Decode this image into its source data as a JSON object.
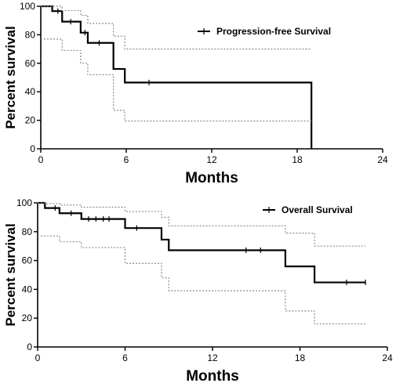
{
  "chart_data": [
    {
      "type": "line",
      "subtype": "kaplan-meier",
      "title": "",
      "xlabel": "Months",
      "ylabel": "Percent survival",
      "xlim": [
        0,
        24
      ],
      "ylim": [
        0,
        100
      ],
      "xticks": [
        0,
        6,
        12,
        18,
        24
      ],
      "yticks": [
        0,
        20,
        40,
        60,
        80,
        100
      ],
      "legend": "top-right",
      "grid": false,
      "series": [
        {
          "name": "Progression-free Survival",
          "style": "solid",
          "x": [
            0,
            0.8,
            1.5,
            2.8,
            3.3,
            5.1,
            5.9,
            19.0,
            19.0
          ],
          "y": [
            100,
            96.6,
            89.2,
            81.5,
            74.3,
            56.0,
            46.5,
            46.5,
            0
          ],
          "censored_x": [
            1.2,
            2.1,
            3.1,
            4.1,
            7.6
          ],
          "censored_y": [
            96.6,
            89.2,
            81.5,
            74.3,
            46.5
          ]
        },
        {
          "style": "dotted",
          "x": [
            0,
            0.8,
            1.5,
            2.8,
            3.3,
            5.1,
            5.9,
            19.0
          ],
          "y": [
            100,
            100,
            97,
            93.6,
            88,
            79,
            70,
            70
          ]
        },
        {
          "style": "dotted",
          "x": [
            0,
            0.8,
            1.5,
            2.8,
            3.3,
            5.1,
            5.9,
            19.0
          ],
          "y": [
            77,
            77,
            69,
            60,
            52,
            27,
            19.5,
            19.5
          ]
        }
      ]
    },
    {
      "type": "line",
      "subtype": "kaplan-meier",
      "title": "",
      "xlabel": "Months",
      "ylabel": "Percent survival",
      "xlim": [
        0,
        24
      ],
      "ylim": [
        0,
        100
      ],
      "xticks": [
        0,
        6,
        12,
        18,
        24
      ],
      "yticks": [
        0,
        20,
        40,
        60,
        80,
        100
      ],
      "legend": "top-right",
      "grid": false,
      "series": [
        {
          "name": "Overall Survival",
          "style": "solid",
          "x": [
            0,
            0.5,
            1.5,
            3.0,
            6.0,
            8.5,
            9.0,
            17.0,
            19.0,
            22.5
          ],
          "y": [
            100,
            96.4,
            92.8,
            88.8,
            82.5,
            74.5,
            67.1,
            55.9,
            44.8,
            44.8
          ],
          "censored_x": [
            1.2,
            2.3,
            3.5,
            4.0,
            4.5,
            4.9,
            6.8,
            14.3,
            15.3,
            21.2,
            22.5
          ],
          "censored_y": [
            96.4,
            92.8,
            88.8,
            88.8,
            88.8,
            88.8,
            82.5,
            67.1,
            67.1,
            44.8,
            44.8
          ]
        },
        {
          "style": "dotted",
          "x": [
            0,
            0.5,
            1.5,
            3.0,
            6.0,
            8.5,
            9.0,
            17.0,
            19.0,
            22.5
          ],
          "y": [
            100,
            99.5,
            98.5,
            97,
            94,
            90,
            84,
            79,
            70,
            70
          ]
        },
        {
          "style": "dotted",
          "x": [
            0,
            0.5,
            1.5,
            3.0,
            6.0,
            8.5,
            9.0,
            17.0,
            19.0,
            22.5
          ],
          "y": [
            77,
            77,
            73,
            69,
            58,
            48,
            39,
            25,
            16,
            16
          ]
        }
      ]
    }
  ]
}
